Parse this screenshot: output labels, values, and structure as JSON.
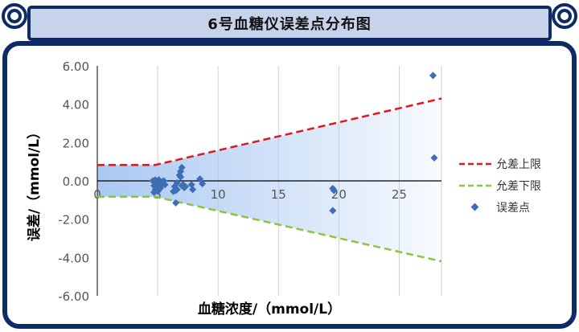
{
  "header": {
    "title": "6号血糖仪误差点分布图"
  },
  "colors": {
    "frame_border": "#0f2b66",
    "title_fill": "#c6d3ea",
    "band_fill": "#a9c8f2",
    "upper_line": "#e0171c",
    "lower_line": "#8cc63f",
    "points": "#3e6db5"
  },
  "chart_data": {
    "type": "scatter",
    "xlabel": "血糖浓度/（mmol/L）",
    "ylabel": "误差/（mmol/L）",
    "xlim": [
      0,
      28.5
    ],
    "ylim": [
      -6,
      6
    ],
    "x_ticks": [
      "0",
      "5",
      "10",
      "15",
      "20",
      "25"
    ],
    "y_ticks": [
      "6.00",
      "4.00",
      "2.00",
      "0.00",
      "-2.00",
      "-4.00",
      "-6.00"
    ],
    "grid": "vertical",
    "legend_position": "right",
    "series": [
      {
        "name": "允差上限",
        "style": "dashed-line",
        "color": "#e0171c",
        "x": [
          0,
          4.8,
          28.5
        ],
        "y": [
          0.83,
          0.83,
          4.3
        ]
      },
      {
        "name": "允差下限",
        "style": "dashed-line",
        "color": "#8cc63f",
        "x": [
          0,
          4.8,
          28.5
        ],
        "y": [
          -0.83,
          -0.83,
          -4.2
        ]
      },
      {
        "name": "误差点",
        "style": "marker",
        "color": "#3e6db5",
        "x": [
          4.6,
          4.7,
          4.8,
          4.9,
          5.0,
          5.1,
          5.2,
          5.3,
          5.4,
          4.8,
          5.0,
          5.2,
          4.7,
          5.5,
          5.6,
          5.1,
          6.4,
          6.5,
          6.6,
          6.8,
          6.9,
          7.0,
          7.1,
          7.2,
          6.6,
          6.9,
          7.0,
          7.3,
          6.3,
          6.5,
          7.8,
          7.9,
          8.5,
          8.7,
          19.5,
          19.6,
          19.5,
          27.8,
          27.9
        ],
        "y": [
          0.0,
          -0.25,
          0.05,
          -0.1,
          -0.3,
          0.05,
          -0.4,
          -0.2,
          -0.05,
          -0.45,
          -0.55,
          -0.35,
          -0.6,
          0.0,
          -0.2,
          -0.15,
          -0.3,
          -0.5,
          -0.1,
          0.3,
          0.5,
          0.7,
          -0.2,
          -0.35,
          -0.45,
          0.2,
          -0.25,
          -0.3,
          -0.55,
          -1.15,
          -0.2,
          -0.45,
          0.1,
          -0.15,
          -0.4,
          -0.5,
          -1.55,
          5.5,
          1.2
        ]
      }
    ]
  }
}
